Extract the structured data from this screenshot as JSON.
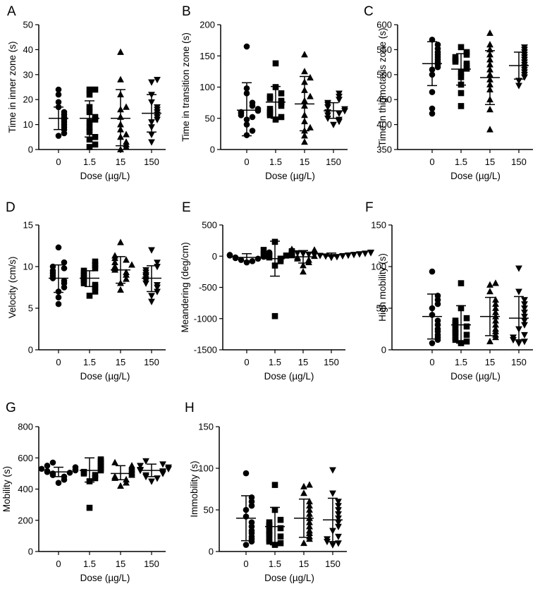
{
  "chart_data": [
    {
      "panel": "A",
      "type": "scatter",
      "xlabel": "Dose (µg/L)",
      "ylabel": "Time in inner zone (s)",
      "categories": [
        "0",
        "1.5",
        "15",
        "150"
      ],
      "ylim": [
        0,
        50
      ],
      "yticks": [
        0,
        10,
        20,
        30,
        40,
        50
      ],
      "markers": [
        "circle",
        "square",
        "triangle-up",
        "triangle-down"
      ],
      "groups": [
        {
          "points": [
            5.5,
            6.5,
            8,
            9,
            10,
            11,
            12,
            13,
            14,
            15,
            17,
            19,
            22,
            24
          ],
          "mean": 12.5,
          "sd_low": 8,
          "sd_high": 17
        },
        {
          "points": [
            1,
            2,
            4,
            5,
            7,
            9,
            11,
            12,
            13,
            15,
            17,
            22,
            24,
            24
          ],
          "mean": 12.5,
          "sd_low": 5,
          "sd_high": 19.5
        },
        {
          "points": [
            0,
            1,
            2,
            3,
            5,
            6,
            8,
            10,
            13,
            16,
            17,
            22,
            28,
            39
          ],
          "mean": 12.5,
          "sd_low": 1.5,
          "sd_high": 24
        },
        {
          "points": [
            3,
            6,
            9,
            11,
            12,
            13,
            14,
            15,
            16,
            17,
            19,
            22,
            27,
            28
          ],
          "mean": 14.5,
          "sd_low": 7,
          "sd_high": 22
        }
      ]
    },
    {
      "panel": "B",
      "type": "scatter",
      "xlabel": "Dose (µg/L)",
      "ylabel": "Time in transition zone (s)",
      "categories": [
        "0",
        "1.5",
        "15",
        "150"
      ],
      "ylim": [
        0,
        200
      ],
      "yticks": [
        0,
        50,
        100,
        150,
        200
      ],
      "markers": [
        "circle",
        "square",
        "triangle-up",
        "triangle-down"
      ],
      "groups": [
        {
          "points": [
            23,
            30,
            40,
            48,
            52,
            55,
            58,
            60,
            62,
            65,
            70,
            75,
            90,
            98,
            165
          ],
          "mean": 63,
          "sd_low": 22,
          "sd_high": 107
        },
        {
          "points": [
            48,
            52,
            55,
            58,
            60,
            65,
            70,
            75,
            78,
            82,
            85,
            90,
            100,
            138
          ],
          "mean": 76,
          "sd_low": 50,
          "sd_high": 101
        },
        {
          "points": [
            12,
            22,
            30,
            35,
            45,
            55,
            70,
            78,
            85,
            95,
            108,
            115,
            125,
            152
          ],
          "mean": 73,
          "sd_low": 30,
          "sd_high": 117
        },
        {
          "points": [
            40,
            45,
            48,
            50,
            55,
            58,
            60,
            62,
            65,
            68,
            72,
            75,
            80,
            85,
            90
          ],
          "mean": 62,
          "sd_low": 50,
          "sd_high": 75
        }
      ]
    },
    {
      "panel": "C",
      "type": "scatter",
      "xlabel": "Dose (µg/L)",
      "ylabel": "Time in thigmotaxis zone (s)",
      "categories": [
        "0",
        "1.5",
        "15",
        "150"
      ],
      "ylim": [
        350,
        600
      ],
      "yticks": [
        350,
        400,
        450,
        500,
        550,
        600
      ],
      "markers": [
        "circle",
        "square",
        "triangle-up",
        "triangle-down"
      ],
      "groups": [
        {
          "points": [
            422,
            432,
            465,
            500,
            510,
            515,
            520,
            525,
            530,
            535,
            540,
            545,
            552,
            560,
            570
          ],
          "mean": 522,
          "sd_low": 478,
          "sd_high": 566
        },
        {
          "points": [
            437,
            463,
            480,
            495,
            505,
            512,
            518,
            522,
            526,
            530,
            535,
            540,
            545,
            555
          ],
          "mean": 511,
          "sd_low": 479,
          "sd_high": 542
        },
        {
          "points": [
            390,
            430,
            450,
            470,
            480,
            490,
            500,
            510,
            520,
            530,
            540,
            550,
            560,
            583
          ],
          "mean": 494,
          "sd_low": 440,
          "sd_high": 548
        },
        {
          "points": [
            478,
            488,
            495,
            500,
            505,
            510,
            515,
            520,
            525,
            530,
            535,
            540,
            545,
            550,
            555
          ],
          "mean": 518,
          "sd_low": 491,
          "sd_high": 545
        }
      ]
    },
    {
      "panel": "D",
      "type": "scatter",
      "xlabel": "Dose (µg/L)",
      "ylabel": "Velocity (cm/s)",
      "categories": [
        "0",
        "1.5",
        "15",
        "150"
      ],
      "ylim": [
        0,
        15
      ],
      "yticks": [
        0,
        5,
        10,
        15
      ],
      "markers": [
        "circle",
        "square",
        "triangle-up",
        "triangle-down"
      ],
      "groups": [
        {
          "points": [
            5.5,
            6.3,
            7,
            7.5,
            8,
            8.3,
            8.6,
            8.9,
            9.2,
            9.5,
            9.8,
            10,
            10.5,
            12.3
          ],
          "mean": 8.6,
          "sd_low": 6.9,
          "sd_high": 10.2
        },
        {
          "points": [
            6.5,
            7,
            7.5,
            7.8,
            8,
            8.3,
            8.5,
            8.7,
            9,
            9.2,
            9.5,
            9.8,
            10.2,
            10.6
          ],
          "mean": 8.6,
          "sd_low": 7.6,
          "sd_high": 9.5
        },
        {
          "points": [
            7.2,
            8,
            8.5,
            9,
            9.3,
            9.6,
            9.8,
            10,
            10.2,
            10.5,
            10.8,
            11,
            11.3,
            12.9
          ],
          "mean": 9.6,
          "sd_low": 8.0,
          "sd_high": 11.2
        },
        {
          "points": [
            5.8,
            6.5,
            7,
            7.5,
            7.8,
            8,
            8.3,
            8.5,
            8.8,
            9,
            9.3,
            9.6,
            10,
            10.5,
            12
          ],
          "mean": 8.6,
          "sd_low": 7.0,
          "sd_high": 10.1
        }
      ]
    },
    {
      "panel": "E",
      "type": "scatter",
      "xlabel": "Dose (µg/L)",
      "ylabel": "Meandering (deg/cm)",
      "categories": [
        "0",
        "1.5",
        "15",
        "150"
      ],
      "ylim": [
        -1500,
        500
      ],
      "yticks": [
        -1500,
        -1000,
        -500,
        0,
        500
      ],
      "markers": [
        "circle",
        "square",
        "triangle-up",
        "triangle-down"
      ],
      "groups": [
        {
          "points": [
            -100,
            -80,
            -60,
            -40,
            -30,
            -20,
            -10,
            0,
            10,
            20,
            30,
            40,
            50,
            60
          ],
          "mean": -20,
          "sd_low": -75,
          "sd_high": 40
        },
        {
          "points": [
            -960,
            -150,
            -80,
            -40,
            -20,
            0,
            10,
            20,
            30,
            40,
            60,
            80,
            100,
            230
          ],
          "mean": -40,
          "sd_low": -320,
          "sd_high": 240
        },
        {
          "points": [
            -250,
            -150,
            -100,
            -60,
            -40,
            -20,
            0,
            10,
            20,
            40,
            60,
            80,
            100,
            110
          ],
          "mean": -10,
          "sd_low": -110,
          "sd_high": 90
        },
        {
          "points": [
            -20,
            -10,
            0,
            5,
            10,
            15,
            20,
            25,
            30,
            35,
            40,
            45,
            50,
            55,
            60
          ],
          "mean": 25,
          "sd_low": 0,
          "sd_high": 50
        }
      ]
    },
    {
      "panel": "F",
      "type": "scatter",
      "xlabel": "Dose (µg/L)",
      "ylabel": "High mobility  (s)",
      "categories": [
        "0",
        "1.5",
        "15",
        "150"
      ],
      "ylim": [
        0,
        150
      ],
      "yticks": [
        0,
        50,
        100,
        150
      ],
      "markers": [
        "circle",
        "square",
        "triangle-up",
        "triangle-down"
      ],
      "groups": [
        {
          "points": [
            8,
            12,
            15,
            18,
            22,
            25,
            30,
            35,
            42,
            50,
            55,
            60,
            65,
            94
          ],
          "mean": 40,
          "sd_low": 13,
          "sd_high": 67
        },
        {
          "points": [
            8,
            10,
            12,
            15,
            18,
            20,
            22,
            25,
            28,
            30,
            32,
            35,
            38,
            50,
            80
          ],
          "mean": 30,
          "sd_low": 8,
          "sd_high": 53
        },
        {
          "points": [
            10,
            15,
            18,
            22,
            25,
            30,
            35,
            40,
            45,
            50,
            55,
            60,
            70,
            78,
            80
          ],
          "mean": 40,
          "sd_low": 17,
          "sd_high": 63
        },
        {
          "points": [
            8,
            10,
            12,
            15,
            18,
            25,
            30,
            35,
            40,
            45,
            50,
            55,
            60,
            70,
            98
          ],
          "mean": 38,
          "sd_low": 12,
          "sd_high": 64
        }
      ]
    },
    {
      "panel": "G",
      "type": "scatter",
      "xlabel": "Dose (µg/L)",
      "ylabel": "Mobility (s)",
      "categories": [
        "0",
        "1.5",
        "15",
        "150"
      ],
      "ylim": [
        0,
        800
      ],
      "yticks": [
        0,
        200,
        400,
        600,
        800
      ],
      "markers": [
        "circle",
        "square",
        "triangle-up",
        "triangle-down"
      ],
      "groups": [
        {
          "points": [
            440,
            460,
            480,
            490,
            500,
            505,
            510,
            515,
            520,
            525,
            530,
            540,
            550,
            570
          ],
          "mean": 510,
          "sd_low": 480,
          "sd_high": 540
        },
        {
          "points": [
            280,
            450,
            470,
            490,
            500,
            510,
            520,
            530,
            540,
            550,
            560,
            570,
            580,
            590
          ],
          "mean": 520,
          "sd_low": 445,
          "sd_high": 600
        },
        {
          "points": [
            420,
            440,
            460,
            470,
            480,
            490,
            500,
            510,
            520,
            530,
            540,
            550,
            570
          ],
          "mean": 500,
          "sd_low": 460,
          "sd_high": 550
        },
        {
          "points": [
            450,
            470,
            480,
            490,
            500,
            510,
            515,
            520,
            525,
            530,
            540,
            550,
            560,
            580
          ],
          "mean": 520,
          "sd_low": 480,
          "sd_high": 560
        }
      ]
    },
    {
      "panel": "H",
      "type": "scatter",
      "xlabel": "Dose (µg/L)",
      "ylabel": "Immobility (s)",
      "categories": [
        "0",
        "1.5",
        "15",
        "150"
      ],
      "ylim": [
        0,
        150
      ],
      "yticks": [
        0,
        50,
        100,
        150
      ],
      "markers": [
        "circle",
        "square",
        "triangle-up",
        "triangle-down"
      ],
      "groups": [
        {
          "points": [
            8,
            12,
            15,
            18,
            22,
            25,
            30,
            35,
            42,
            50,
            55,
            60,
            65,
            94
          ],
          "mean": 40,
          "sd_low": 13,
          "sd_high": 67
        },
        {
          "points": [
            8,
            10,
            12,
            15,
            18,
            20,
            22,
            25,
            28,
            30,
            32,
            35,
            38,
            50,
            80
          ],
          "mean": 30,
          "sd_low": 8,
          "sd_high": 53
        },
        {
          "points": [
            10,
            15,
            18,
            22,
            25,
            30,
            35,
            40,
            45,
            50,
            55,
            60,
            70,
            78,
            80
          ],
          "mean": 40,
          "sd_low": 17,
          "sd_high": 63
        },
        {
          "points": [
            8,
            10,
            12,
            15,
            18,
            25,
            30,
            35,
            40,
            45,
            50,
            55,
            60,
            70,
            98
          ],
          "mean": 38,
          "sd_low": 12,
          "sd_high": 64
        }
      ]
    }
  ]
}
